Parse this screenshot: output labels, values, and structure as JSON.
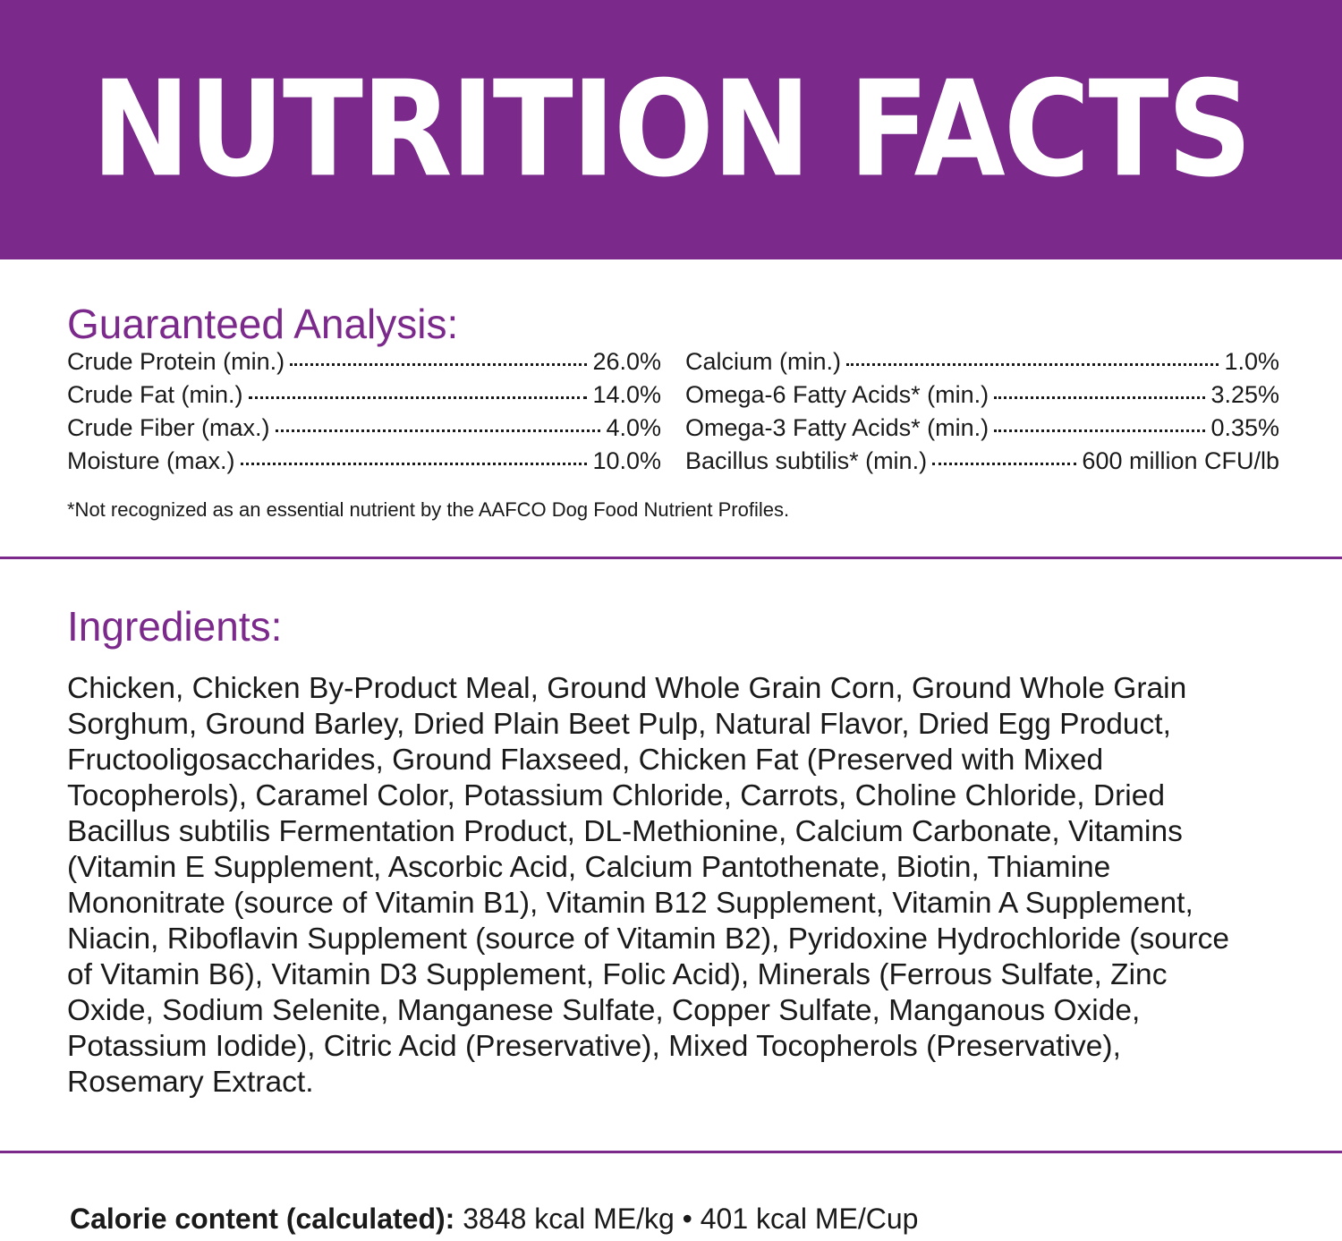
{
  "header": {
    "title": "NUTRITION FACTS"
  },
  "analysis": {
    "heading": "Guaranteed Analysis:",
    "left": [
      {
        "label": "Crude Protein (min.)",
        "value": "26.0%"
      },
      {
        "label": "Crude Fat (min.)",
        "value": "14.0%"
      },
      {
        "label": "Crude Fiber (max.)",
        "value": "4.0%"
      },
      {
        "label": "Moisture (max.)",
        "value": "10.0%"
      }
    ],
    "right": [
      {
        "label": "Calcium (min.)",
        "value": "1.0%"
      },
      {
        "label": "Omega-6 Fatty Acids* (min.)",
        "value": "3.25%"
      },
      {
        "label": "Omega-3 Fatty Acids* (min.)",
        "value": "0.35%"
      },
      {
        "label": "Bacillus subtilis* (min.)",
        "value": "600 million CFU/lb"
      }
    ],
    "footnote": "*Not recognized as an essential nutrient by the AAFCO Dog Food Nutrient Profiles."
  },
  "ingredients": {
    "heading": "Ingredients:",
    "text": "Chicken, Chicken By-Product Meal, Ground Whole Grain Corn, Ground Whole Grain Sorghum, Ground Barley, Dried Plain Beet Pulp, Natural Flavor, Dried Egg Product, Fructooligosaccharides, Ground Flaxseed, Chicken Fat (Preserved with Mixed Tocopherols), Caramel Color, Potassium Chloride, Carrots, Choline Chloride, Dried Bacillus subtilis Fermentation Product, DL-Methionine, Calcium Carbonate, Vitamins (Vitamin E Supplement, Ascorbic Acid, Calcium Pantothenate, Biotin, Thiamine Mononitrate (source of Vitamin B1), Vitamin B12 Supplement, Vitamin A Supplement, Niacin, Riboflavin Supplement (source of Vitamin B2), Pyridoxine Hydrochloride (source of Vitamin B6), Vitamin D3 Supplement, Folic Acid), Minerals (Ferrous Sulfate, Zinc Oxide, Sodium Selenite, Manganese Sulfate, Copper Sulfate, Manganous Oxide, Potassium Iodide), Citric Acid (Preservative), Mixed Tocopherols (Preservative), Rosemary Extract."
  },
  "calorie": {
    "label": "Calorie content (calculated):",
    "value": "3848 kcal ME/kg • 401 kcal ME/Cup"
  }
}
